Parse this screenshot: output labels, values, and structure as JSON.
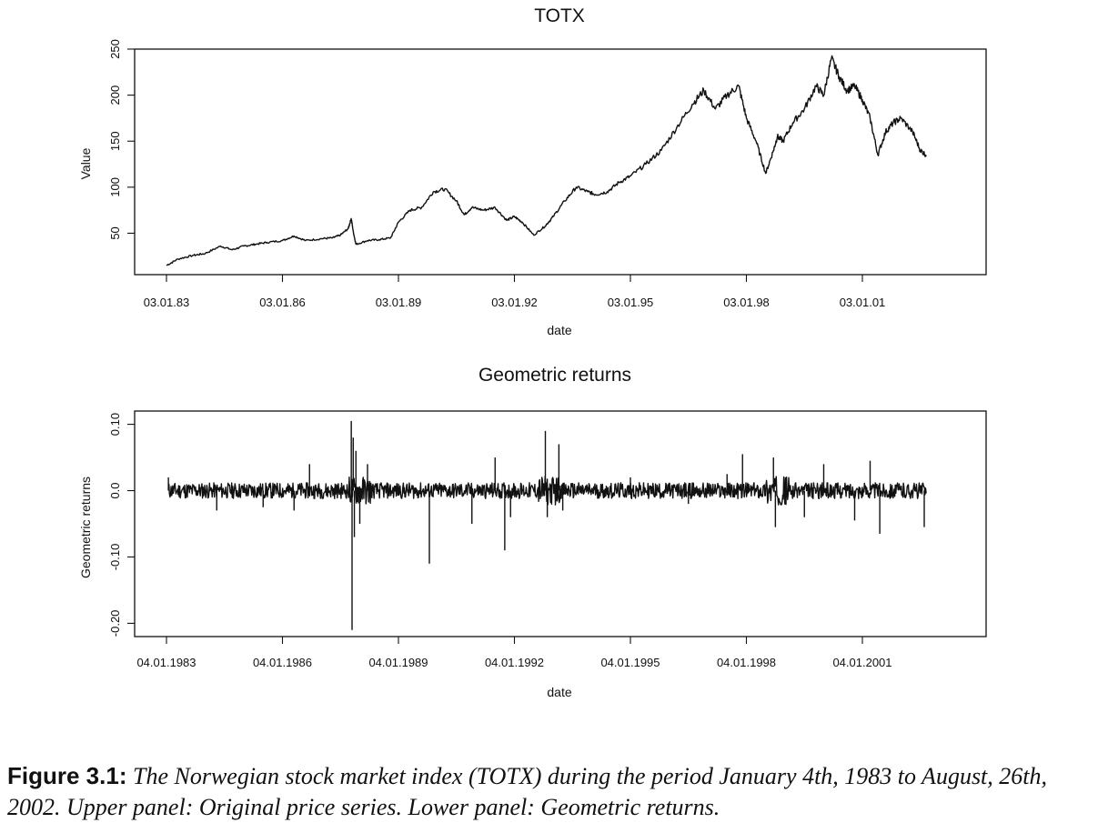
{
  "chart_data": [
    {
      "type": "line",
      "title": "TOTX",
      "xlabel": "date",
      "ylabel": "Value",
      "xlim": [
        1983.0,
        2004.2
      ],
      "ylim": [
        5,
        250
      ],
      "x_ticks": [
        1983,
        1986,
        1989,
        1992,
        1995,
        1998,
        2001
      ],
      "x_tick_labels": [
        "03.01.83",
        "03.01.86",
        "03.01.89",
        "03.01.92",
        "03.01.95",
        "03.01.98",
        "03.01.01"
      ],
      "y_ticks": [
        50,
        100,
        150,
        200,
        250
      ],
      "y_tick_labels": [
        "50",
        "100",
        "150",
        "200",
        "250"
      ],
      "series": [
        {
          "x": [
            1983.0,
            1983.3,
            1983.7,
            1984.0,
            1984.4,
            1984.7,
            1985.0,
            1985.3,
            1985.6,
            1986.0,
            1986.3,
            1986.6,
            1987.0,
            1987.3,
            1987.5,
            1987.7,
            1987.78,
            1987.83,
            1987.9,
            1988.2,
            1988.5,
            1988.8,
            1989.0,
            1989.3,
            1989.6,
            1989.9,
            1990.2,
            1990.5,
            1990.7,
            1990.9,
            1991.2,
            1991.5,
            1991.8,
            1992.0,
            1992.2,
            1992.5,
            1992.8,
            1993.0,
            1993.3,
            1993.6,
            1993.9,
            1994.1,
            1994.4,
            1994.7,
            1995.0,
            1995.4,
            1995.8,
            1996.2,
            1996.6,
            1996.9,
            1997.2,
            1997.5,
            1997.8,
            1998.0,
            1998.25,
            1998.5,
            1998.7,
            1998.8,
            1998.95,
            1999.2,
            1999.5,
            1999.8,
            2000.0,
            2000.2,
            2000.4,
            2000.6,
            2000.8,
            2001.0,
            2001.2,
            2001.4,
            2001.6,
            2001.8,
            2002.0,
            2002.3,
            2002.5,
            2002.65
          ],
          "y": [
            15,
            22,
            26,
            28,
            36,
            32,
            36,
            38,
            40,
            42,
            47,
            42,
            44,
            45,
            48,
            55,
            66,
            52,
            38,
            42,
            43,
            45,
            62,
            75,
            78,
            95,
            98,
            85,
            70,
            78,
            75,
            78,
            64,
            68,
            62,
            48,
            58,
            68,
            85,
            100,
            95,
            92,
            95,
            105,
            112,
            125,
            140,
            165,
            190,
            205,
            185,
            200,
            210,
            175,
            150,
            115,
            140,
            155,
            150,
            170,
            185,
            210,
            200,
            240,
            220,
            205,
            210,
            195,
            175,
            135,
            160,
            170,
            175,
            160,
            140,
            135
          ]
        }
      ]
    },
    {
      "type": "line",
      "title": "Geometric returns",
      "xlabel": "date",
      "ylabel": "Geometric returns",
      "xlim": [
        1983.0,
        2004.2
      ],
      "ylim": [
        -0.22,
        0.12
      ],
      "x_ticks": [
        1983,
        1986,
        1989,
        1992,
        1995,
        1998,
        2001
      ],
      "x_tick_labels": [
        "04.01.1983",
        "04.01.1986",
        "04.01.1989",
        "04.01.1992",
        "04.01.1995",
        "04.01.1998",
        "04.01.2001"
      ],
      "y_ticks": [
        -0.2,
        -0.1,
        0.0,
        0.1
      ],
      "y_tick_labels": [
        "-0.20",
        "-0.10",
        "0.0",
        "0.10"
      ],
      "series": [
        {
          "x": [
            1983.05,
            1984.3,
            1985.5,
            1986.3,
            1986.7,
            1987.78,
            1987.8,
            1987.83,
            1987.86,
            1987.9,
            1988.0,
            1988.2,
            1989.8,
            1990.9,
            1991.5,
            1991.75,
            1991.9,
            1992.8,
            1992.85,
            1993.15,
            1993.25,
            1995.0,
            1996.5,
            1997.5,
            1997.9,
            1998.7,
            1998.75,
            1999.5,
            2000.0,
            2000.8,
            2001.2,
            2001.45,
            2002.6
          ],
          "y": [
            0.02,
            -0.03,
            -0.025,
            -0.03,
            0.04,
            0.105,
            -0.21,
            0.08,
            -0.07,
            0.06,
            -0.05,
            0.04,
            -0.11,
            -0.05,
            0.05,
            -0.09,
            -0.04,
            0.09,
            -0.04,
            0.07,
            -0.03,
            0.02,
            -0.02,
            0.025,
            0.055,
            0.05,
            -0.055,
            -0.04,
            0.04,
            -0.045,
            0.045,
            -0.065,
            -0.055
          ]
        }
      ]
    }
  ],
  "caption": {
    "label": "Figure 3.1:",
    "text": "The Norwegian stock market index (TOTX) during the period January 4th, 1983 to August, 26th, 2002. Upper panel: Original price series. Lower panel: Geometric returns."
  }
}
